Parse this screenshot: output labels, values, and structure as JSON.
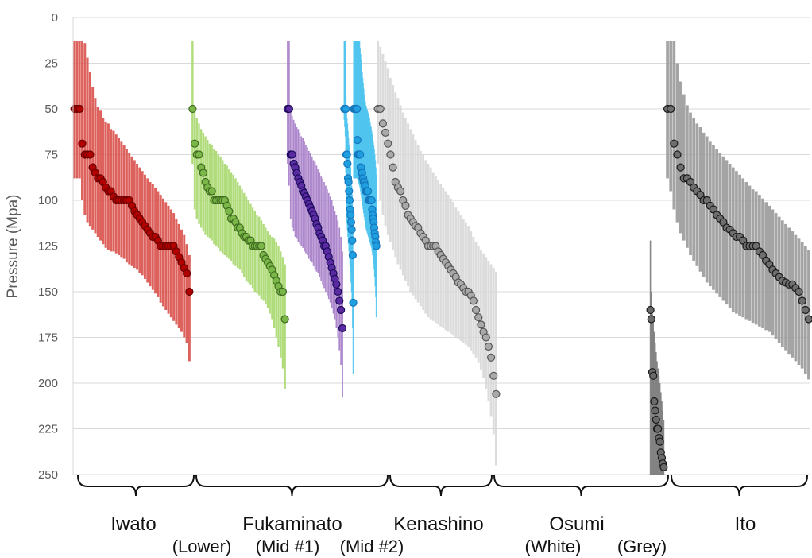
{
  "chart_data": {
    "type": "scatter",
    "ylabel": "Pressure (Mpa)",
    "ylim": [
      0,
      250
    ],
    "y_inverted": true,
    "y_ticks": [
      "0",
      "25",
      "50",
      "75",
      "100",
      "125",
      "150",
      "175",
      "200",
      "225",
      "250"
    ],
    "grid": "horizontal",
    "legend": "none",
    "group_labels": [
      {
        "name": "Iwato"
      },
      {
        "name": "Fukaminato"
      },
      {
        "name": "Kenashino"
      },
      {
        "name": "Osumi"
      },
      {
        "name": "Ito"
      }
    ],
    "sub_labels": [
      {
        "text": "(Lower)"
      },
      {
        "text": "(Mid #1)"
      },
      {
        "text": "(Mid #2)"
      },
      {
        "text": "(White)"
      },
      {
        "text": "(Grey)"
      }
    ],
    "series": [
      {
        "name": "Iwato (Lower)",
        "bar_color": "#d9504a",
        "point_color": "#b00000",
        "point_edge": "#6a0000",
        "values": [
          50,
          50,
          50,
          69,
          75,
          75,
          75,
          82,
          85,
          88,
          88,
          90,
          93,
          95,
          95,
          98,
          100,
          100,
          100,
          100,
          100,
          100,
          103,
          106,
          108,
          110,
          112,
          114,
          116,
          118,
          120,
          120,
          122,
          125,
          125,
          125,
          125,
          125,
          125,
          128,
          131,
          134,
          137,
          140,
          150
        ],
        "lower": [
          13,
          13,
          13,
          13,
          14,
          22,
          30,
          38,
          44,
          49,
          51,
          55,
          57,
          58,
          61,
          62,
          64,
          66,
          68,
          70,
          72,
          74,
          76,
          78,
          80,
          82,
          84,
          86,
          88,
          90,
          91,
          93,
          95,
          97,
          99,
          101,
          103,
          105,
          107,
          110,
          113,
          116,
          119,
          124,
          130
        ],
        "upper": [
          88,
          88,
          88,
          100,
          108,
          112,
          114,
          116,
          118,
          120,
          122,
          124,
          126,
          127,
          128,
          128,
          129,
          130,
          131,
          132,
          134,
          135,
          136,
          137,
          138,
          140,
          141,
          143,
          145,
          147,
          149,
          151,
          153,
          156,
          158,
          160,
          162,
          164,
          166,
          168,
          170,
          172,
          175,
          178,
          188
        ]
      },
      {
        "name": "Fukaminato (Mid #1)",
        "bar_color": "#a9d86e",
        "point_color": "#7ab648",
        "point_edge": "#3f6b20",
        "values": [
          50,
          69,
          75,
          75,
          82,
          85,
          90,
          93,
          95,
          95,
          100,
          100,
          100,
          100,
          100,
          100,
          103,
          106,
          110,
          110,
          112,
          115,
          115,
          118,
          120,
          120,
          122,
          122,
          125,
          125,
          125,
          125,
          125,
          130,
          132,
          134,
          136,
          138,
          141,
          144,
          147,
          150,
          150,
          165
        ],
        "lower": [
          13,
          50,
          55,
          58,
          61,
          63,
          65,
          67,
          69,
          70,
          72,
          73,
          75,
          76,
          78,
          80,
          81,
          83,
          85,
          86,
          88,
          90,
          92,
          94,
          96,
          98,
          100,
          102,
          104,
          106,
          108,
          109,
          111,
          113,
          115,
          117,
          119,
          120,
          121,
          123,
          125,
          128,
          131,
          135
        ],
        "upper": [
          80,
          105,
          110,
          113,
          115,
          117,
          119,
          120,
          121,
          122,
          124,
          125,
          126,
          128,
          129,
          130,
          131,
          132,
          133,
          135,
          136,
          137,
          138,
          140,
          142,
          144,
          145,
          146,
          148,
          150,
          151,
          152,
          154,
          155,
          157,
          159,
          162,
          165,
          170,
          175,
          180,
          186,
          192,
          203
        ]
      },
      {
        "name": "Fukaminato (Mid #2)",
        "bar_color": "#a57bc8",
        "point_color": "#5a2ba0",
        "point_edge": "#1a0a5a",
        "values": [
          50,
          50,
          75,
          75,
          80,
          82,
          85,
          88,
          90,
          92,
          95,
          96,
          98,
          100,
          102,
          104,
          106,
          108,
          110,
          113,
          115,
          118,
          120,
          122,
          125,
          125,
          128,
          131,
          134,
          137,
          140,
          143,
          146,
          150,
          155,
          160,
          170
        ],
        "lower": [
          13,
          13,
          50,
          54,
          56,
          58,
          60,
          61,
          63,
          65,
          66,
          68,
          70,
          71,
          73,
          74,
          76,
          78,
          79,
          81,
          83,
          85,
          87,
          88,
          90,
          92,
          94,
          96,
          98,
          100,
          103,
          106,
          108,
          111,
          115,
          120,
          128
        ],
        "upper": [
          80,
          92,
          110,
          115,
          117,
          120,
          121,
          123,
          124,
          125,
          126,
          128,
          129,
          130,
          132,
          133,
          134,
          136,
          138,
          139,
          140,
          142,
          144,
          146,
          148,
          150,
          152,
          154,
          156,
          159,
          162,
          165,
          170,
          175,
          182,
          190,
          208
        ]
      },
      {
        "name": "Kenashino",
        "bar_color": "#4fc4ee",
        "point_color": "#1f9ee0",
        "point_edge": "#1677bd",
        "values": [
          50,
          50,
          50,
          50,
          75,
          75,
          80,
          88,
          90,
          95,
          100,
          105,
          108,
          112,
          116,
          122,
          130,
          156,
          50,
          50,
          50,
          50,
          50,
          50,
          50,
          67,
          75,
          75,
          75,
          75,
          75,
          82,
          82,
          85,
          85,
          88,
          88,
          90,
          90,
          92,
          92,
          95,
          95,
          95,
          95,
          95,
          100,
          100,
          100,
          100,
          100,
          100,
          100,
          105,
          108,
          110,
          112,
          115,
          118,
          120,
          123,
          125
        ],
        "lower": [
          13,
          13,
          13,
          42,
          50,
          55,
          58,
          62,
          66,
          70,
          74,
          78,
          82,
          87,
          92,
          97,
          105,
          130,
          13,
          13,
          13,
          13,
          13,
          13,
          13,
          13,
          13,
          13,
          13,
          13,
          17,
          20,
          23,
          27,
          30,
          33,
          36,
          39,
          42,
          45,
          46,
          48,
          49,
          50,
          51,
          52,
          53,
          54,
          55,
          57,
          59,
          60,
          62,
          64,
          66,
          68,
          70,
          72,
          75,
          78,
          82,
          86
        ],
        "upper": [
          56,
          60,
          65,
          85,
          108,
          112,
          116,
          120,
          124,
          128,
          132,
          136,
          140,
          145,
          150,
          158,
          170,
          195,
          88,
          88,
          88,
          88,
          88,
          88,
          88,
          88,
          89,
          90,
          91,
          92,
          93,
          95,
          97,
          99,
          101,
          103,
          105,
          107,
          109,
          111,
          113,
          115,
          116,
          117,
          118,
          119,
          120,
          121,
          122,
          123,
          124,
          125,
          126,
          128,
          130,
          132,
          135,
          138,
          142,
          147,
          153,
          164
        ]
      },
      {
        "name": "Osumi (White)",
        "bar_color": "#d8d8d8",
        "point_color": "#a9a9a9",
        "point_edge": "#555555",
        "values": [
          50,
          50,
          58,
          63,
          69,
          75,
          82,
          90,
          93,
          95,
          100,
          103,
          108,
          110,
          112,
          114,
          115,
          118,
          120,
          122,
          125,
          125,
          125,
          125,
          128,
          130,
          132,
          134,
          136,
          138,
          140,
          142,
          145,
          146,
          148,
          150,
          150,
          152,
          155,
          160,
          164,
          168,
          172,
          175,
          180,
          186,
          196,
          206
        ],
        "lower": [
          13,
          16,
          20,
          24,
          28,
          33,
          37,
          41,
          44,
          48,
          52,
          55,
          58,
          61,
          64,
          67,
          70,
          73,
          75,
          78,
          80,
          82,
          85,
          87,
          89,
          91,
          93,
          95,
          97,
          99,
          101,
          104,
          106,
          108,
          110,
          112,
          114,
          117,
          120,
          123,
          125,
          127,
          129,
          131,
          133,
          135,
          137,
          139
        ],
        "upper": [
          80,
          100,
          108,
          114,
          119,
          123,
          127,
          131,
          135,
          138,
          141,
          144,
          147,
          150,
          152,
          154,
          156,
          158,
          160,
          162,
          164,
          165,
          166,
          167,
          168,
          169,
          170,
          171,
          172,
          173,
          174,
          175,
          176,
          177,
          178,
          179,
          180,
          182,
          184,
          186,
          189,
          193,
          197,
          203,
          210,
          218,
          228,
          245
        ]
      },
      {
        "name": "Osumi (Grey)",
        "bar_color": "#7a7a7a",
        "point_color": "#6a6a6a",
        "point_edge": "#1a1a1a",
        "values": [
          160,
          165,
          194,
          196,
          210,
          215,
          220,
          225,
          225,
          230,
          232,
          238,
          241,
          244,
          246
        ],
        "lower": [
          122,
          150,
          162,
          167,
          172,
          178,
          183,
          188,
          192,
          196,
          200,
          205,
          210,
          215,
          220
        ],
        "upper": [
          250,
          250,
          250,
          250,
          250,
          250,
          250,
          250,
          250,
          250,
          250,
          250,
          250,
          250,
          250
        ]
      },
      {
        "name": "Ito",
        "bar_color": "#9a9a9a",
        "point_color": "#6e6e6e",
        "point_edge": "#1a1a1a",
        "values": [
          50,
          50,
          69,
          75,
          82,
          88,
          88,
          90,
          93,
          95,
          97,
          100,
          100,
          103,
          105,
          108,
          110,
          112,
          115,
          116,
          118,
          120,
          120,
          122,
          125,
          125,
          125,
          125,
          128,
          130,
          133,
          135,
          138,
          140,
          142,
          144,
          145,
          146,
          146,
          148,
          150,
          155,
          160,
          165
        ],
        "lower": [
          13,
          13,
          13,
          25,
          35,
          42,
          48,
          52,
          55,
          58,
          60,
          63,
          65,
          68,
          70,
          72,
          74,
          76,
          78,
          80,
          82,
          84,
          86,
          88,
          90,
          92,
          94,
          95,
          97,
          99,
          101,
          103,
          105,
          107,
          109,
          111,
          113,
          115,
          117,
          119,
          121,
          123,
          125,
          127
        ],
        "upper": [
          88,
          95,
          105,
          112,
          118,
          122,
          126,
          130,
          133,
          136,
          139,
          142,
          145,
          147,
          149,
          151,
          153,
          155,
          157,
          159,
          161,
          162,
          163,
          164,
          165,
          166,
          167,
          168,
          169,
          170,
          171,
          172,
          174,
          176,
          178,
          180,
          182,
          184,
          186,
          188,
          190,
          192,
          195,
          198
        ]
      }
    ]
  }
}
